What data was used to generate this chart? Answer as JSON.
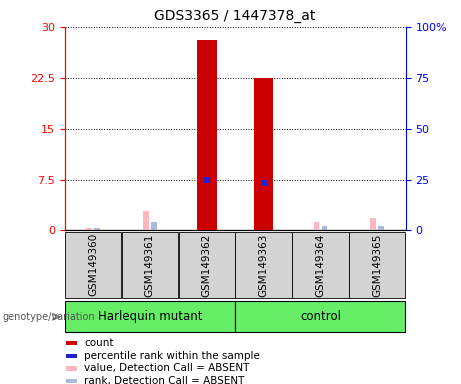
{
  "title": "GDS3365 / 1447378_at",
  "samples": [
    "GSM149360",
    "GSM149361",
    "GSM149362",
    "GSM149363",
    "GSM149364",
    "GSM149365"
  ],
  "group_labels": [
    "Harlequin mutant",
    "control"
  ],
  "count_values": [
    0,
    0,
    28,
    22.5,
    0,
    0
  ],
  "percentile_values": [
    null,
    null,
    7.5,
    7.0,
    null,
    null
  ],
  "absent_value_values": [
    0.4,
    2.8,
    null,
    null,
    1.2,
    1.8
  ],
  "absent_rank_values": [
    0.35,
    1.2,
    null,
    null,
    0.7,
    0.6
  ],
  "left_yticks": [
    0,
    7.5,
    15,
    22.5,
    30
  ],
  "left_ytick_labels": [
    "0",
    "7.5",
    "15",
    "22.5",
    "30"
  ],
  "right_ytick_labels": [
    "0",
    "25",
    "50",
    "75",
    "100%"
  ],
  "ylim_left": [
    0,
    30
  ],
  "count_color": "#CC0000",
  "percentile_color": "#2222CC",
  "absent_value_color": "#FFB6C1",
  "absent_rank_color": "#AABBDD",
  "bar_width": 0.35,
  "absent_bar_width": 0.1,
  "legend_items": [
    {
      "color": "#CC0000",
      "label": "count"
    },
    {
      "color": "#2222CC",
      "label": "percentile rank within the sample"
    },
    {
      "color": "#FFB6C1",
      "label": "value, Detection Call = ABSENT"
    },
    {
      "color": "#AABBDD",
      "label": "rank, Detection Call = ABSENT"
    }
  ],
  "genotype_label": "genotype/variation",
  "background_color": "#ffffff",
  "sample_box_color": "#D3D3D3",
  "group_fill_color": "#66EE66",
  "group_border_color": "#228B22"
}
